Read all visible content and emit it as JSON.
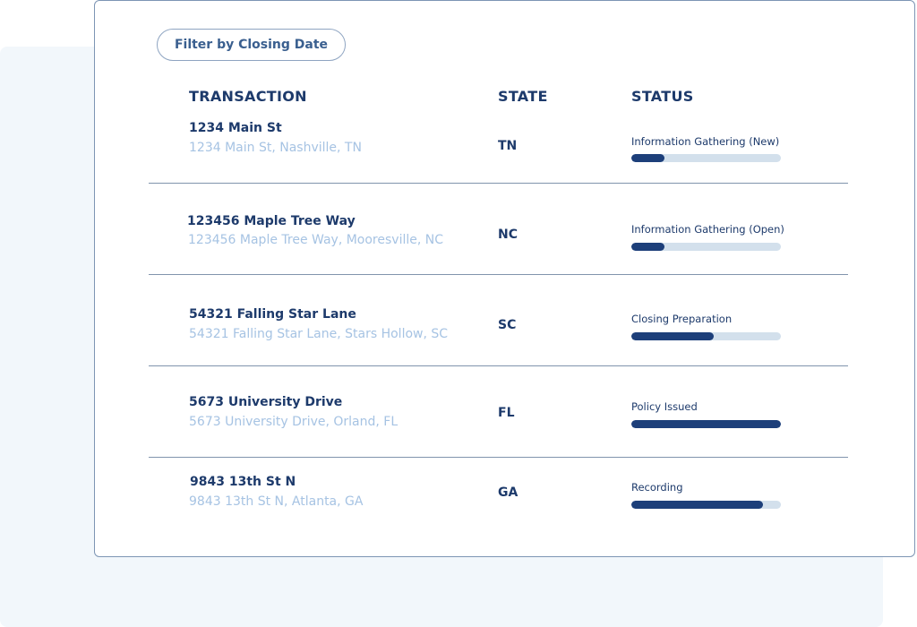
{
  "filter": {
    "label": "Filter by Closing Date"
  },
  "headers": {
    "transaction": "TRANSACTION",
    "state": "STATE",
    "status": "STATUS"
  },
  "colors": {
    "accent": "#1d3f7a",
    "track": "#d3e0ec",
    "subtitle": "#a6c3e3",
    "text": "#1d3a6b"
  },
  "rows": [
    {
      "title": "1234 Main St",
      "address": "1234 Main St, Nashville, TN",
      "state": "TN",
      "status": "Information Gathering (New)",
      "progress": 0.22
    },
    {
      "title": "123456 Maple Tree Way",
      "address": "123456 Maple Tree Way, Mooresville, NC",
      "state": "NC",
      "status": "Information Gathering (Open)",
      "progress": 0.22
    },
    {
      "title": "54321 Falling Star Lane",
      "address": "54321 Falling Star Lane, Stars Hollow, SC",
      "state": "SC",
      "status": "Closing Preparation",
      "progress": 0.55
    },
    {
      "title": "5673 University Drive",
      "address": "5673 University Drive, Orland, FL",
      "state": "FL",
      "status": "Policy Issued",
      "progress": 1.0
    },
    {
      "title": "9843 13th St N",
      "address": "9843 13th St N, Atlanta, GA",
      "state": "GA",
      "status": "Recording",
      "progress": 0.88
    }
  ]
}
